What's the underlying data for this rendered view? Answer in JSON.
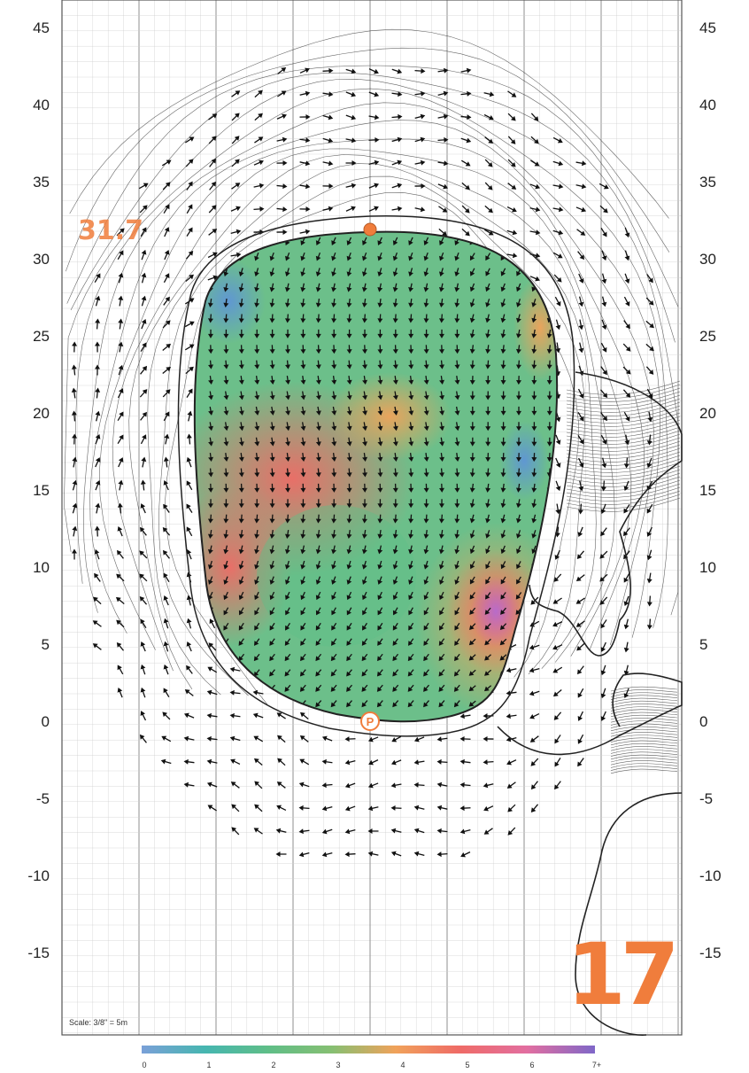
{
  "hole": {
    "number": "17"
  },
  "green": {
    "depth_label": "31.7"
  },
  "axis": {
    "labels": [
      "45",
      "40",
      "35",
      "30",
      "25",
      "20",
      "15",
      "10",
      "5",
      "0",
      "-5",
      "-10",
      "-15"
    ],
    "values": [
      45,
      40,
      35,
      30,
      25,
      20,
      15,
      10,
      5,
      0,
      -5,
      -10,
      -15
    ],
    "range": [
      -20,
      46
    ]
  },
  "scale_note": "Scale: 3/8\" = 5m",
  "legend": {
    "ticks": [
      "0",
      "1",
      "2",
      "3",
      "4",
      "5",
      "6",
      "7+"
    ],
    "colors": [
      "#6f9fd8",
      "#46b6b0",
      "#5fbe87",
      "#7bbf7b",
      "#f0a25a",
      "#ef6b66",
      "#e26ea0",
      "#8a6cc8"
    ]
  },
  "colors": {
    "accent": "#f07d3c",
    "grid": "#8f8f8f",
    "green_base": "#6cbf8a",
    "contour": "#222222"
  }
}
